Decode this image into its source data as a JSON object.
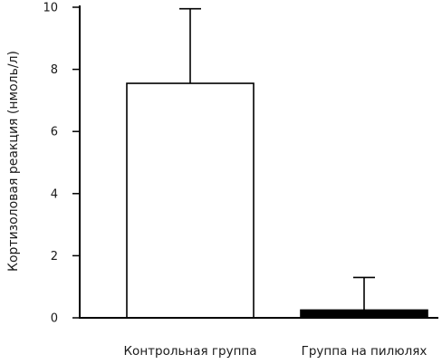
{
  "chart_data": {
    "type": "bar",
    "ylabel": "Кортизоловая реакция (нмоль/л)",
    "xlabel": "",
    "categories": [
      "Контрольная группа",
      "Группа на пилюлях"
    ],
    "values": [
      7.55,
      0.25
    ],
    "error_bars_upper": [
      9.95,
      1.3
    ],
    "bar_fill": [
      "#ffffff",
      "#000000"
    ],
    "ylim": [
      0,
      10
    ],
    "yticks": [
      0,
      2,
      4,
      6,
      8,
      10
    ],
    "grid": false,
    "legend": "none"
  }
}
